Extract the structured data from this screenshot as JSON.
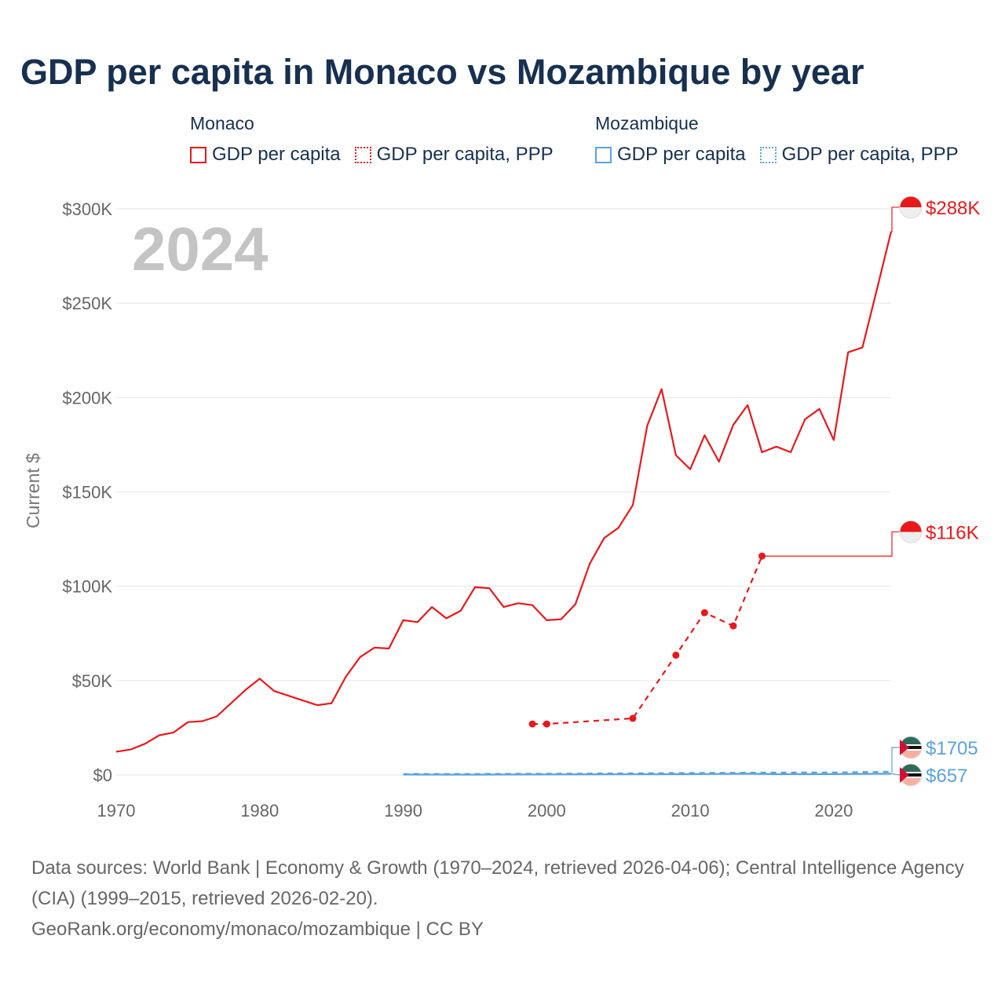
{
  "title": "GDP per capita in Monaco vs Mozambique by year",
  "legend": {
    "groups": [
      {
        "country": "Monaco",
        "color": "#e8191b",
        "items": [
          {
            "label": "GDP per capita",
            "style": "solid"
          },
          {
            "label": "GDP per capita, PPP",
            "style": "dotted"
          }
        ]
      },
      {
        "country": "Mozambique",
        "color": "#5aa2de",
        "items": [
          {
            "label": "GDP per capita",
            "style": "solid"
          },
          {
            "label": "GDP per capita, PPP",
            "style": "dotted"
          }
        ]
      }
    ]
  },
  "footer": {
    "sources": "Data sources: World Bank | Economy & Growth (1970–2024, retrieved 2026-04-06); Central Intelligence Agency (CIA) (1999–2015, retrieved 2026-02-20).",
    "link": "GeoRank.org/economy/monaco/mozambique | CC BY"
  },
  "chart_data": {
    "type": "line",
    "title": "GDP per capita in Monaco vs Mozambique by year",
    "year_overlay": "2024",
    "xlabel": "",
    "ylabel": "Current $",
    "xlim": [
      1970,
      2024
    ],
    "ylim": [
      0,
      300000
    ],
    "grid": true,
    "x_ticks": [
      {
        "value": 1970,
        "label": "1970"
      },
      {
        "value": 1980,
        "label": "1980"
      },
      {
        "value": 1990,
        "label": "1990"
      },
      {
        "value": 2000,
        "label": "2000"
      },
      {
        "value": 2010,
        "label": "2010"
      },
      {
        "value": 2020,
        "label": "2020"
      }
    ],
    "y_ticks": [
      {
        "value": 0,
        "label": "$0"
      },
      {
        "value": 50000,
        "label": "$50K"
      },
      {
        "value": 100000,
        "label": "$100K"
      },
      {
        "value": 150000,
        "label": "$150K"
      },
      {
        "value": 200000,
        "label": "$200K"
      },
      {
        "value": 250000,
        "label": "$250K"
      },
      {
        "value": 300000,
        "label": "$300K"
      }
    ],
    "series": [
      {
        "name": "Monaco GDP per capita",
        "country": "Monaco",
        "color": "#e8191b",
        "style": "solid",
        "markers": false,
        "end_label": "$288K",
        "end_value": 288000,
        "points": [
          [
            1970,
            12300
          ],
          [
            1971,
            13500
          ],
          [
            1972,
            16500
          ],
          [
            1973,
            21000
          ],
          [
            1974,
            22500
          ],
          [
            1975,
            28000
          ],
          [
            1976,
            28500
          ],
          [
            1977,
            31000
          ],
          [
            1978,
            38000
          ],
          [
            1979,
            45000
          ],
          [
            1980,
            51000
          ],
          [
            1981,
            44500
          ],
          [
            1982,
            42000
          ],
          [
            1983,
            39500
          ],
          [
            1984,
            37000
          ],
          [
            1985,
            38000
          ],
          [
            1986,
            52000
          ],
          [
            1987,
            62500
          ],
          [
            1988,
            67500
          ],
          [
            1989,
            67000
          ],
          [
            1990,
            82000
          ],
          [
            1991,
            81000
          ],
          [
            1992,
            89000
          ],
          [
            1993,
            83000
          ],
          [
            1994,
            87000
          ],
          [
            1995,
            99500
          ],
          [
            1996,
            99000
          ],
          [
            1997,
            89000
          ],
          [
            1998,
            91000
          ],
          [
            1999,
            90000
          ],
          [
            2000,
            82000
          ],
          [
            2001,
            82500
          ],
          [
            2002,
            90500
          ],
          [
            2003,
            112000
          ],
          [
            2004,
            125500
          ],
          [
            2005,
            131000
          ],
          [
            2006,
            143000
          ],
          [
            2007,
            185000
          ],
          [
            2008,
            204500
          ],
          [
            2009,
            169500
          ],
          [
            2010,
            162000
          ],
          [
            2011,
            180000
          ],
          [
            2012,
            166000
          ],
          [
            2013,
            185500
          ],
          [
            2014,
            196000
          ],
          [
            2015,
            171000
          ],
          [
            2016,
            174000
          ],
          [
            2017,
            171000
          ],
          [
            2018,
            188500
          ],
          [
            2019,
            194000
          ],
          [
            2020,
            177500
          ],
          [
            2021,
            224000
          ],
          [
            2022,
            226500
          ],
          [
            2023,
            257000
          ],
          [
            2024,
            288000
          ]
        ]
      },
      {
        "name": "Monaco GDP per capita, PPP",
        "country": "Monaco",
        "color": "#e8191b",
        "style": "dashed",
        "markers": true,
        "end_label": "$116K",
        "end_value": 116000,
        "points": [
          [
            1999,
            27000
          ],
          [
            2000,
            27000
          ],
          [
            2006,
            30000
          ],
          [
            2009,
            63500
          ],
          [
            2011,
            86000
          ],
          [
            2013,
            79000
          ],
          [
            2015,
            116000
          ]
        ]
      },
      {
        "name": "Mozambique GDP per capita, PPP",
        "country": "Mozambique",
        "color": "#5aa2de",
        "style": "dashed",
        "markers": false,
        "end_label": "$1705",
        "end_value": 1705,
        "points": [
          [
            1990,
            500
          ],
          [
            1995,
            550
          ],
          [
            2000,
            650
          ],
          [
            2005,
            850
          ],
          [
            2010,
            1050
          ],
          [
            2015,
            1250
          ],
          [
            2020,
            1350
          ],
          [
            2024,
            1705
          ]
        ]
      },
      {
        "name": "Mozambique GDP per capita",
        "country": "Mozambique",
        "color": "#5aa2de",
        "style": "solid",
        "markers": false,
        "end_label": "$657",
        "end_value": 657,
        "points": [
          [
            1990,
            200
          ],
          [
            1995,
            180
          ],
          [
            2000,
            230
          ],
          [
            2005,
            330
          ],
          [
            2010,
            420
          ],
          [
            2014,
            680
          ],
          [
            2016,
            400
          ],
          [
            2020,
            460
          ],
          [
            2024,
            657
          ]
        ]
      }
    ]
  }
}
